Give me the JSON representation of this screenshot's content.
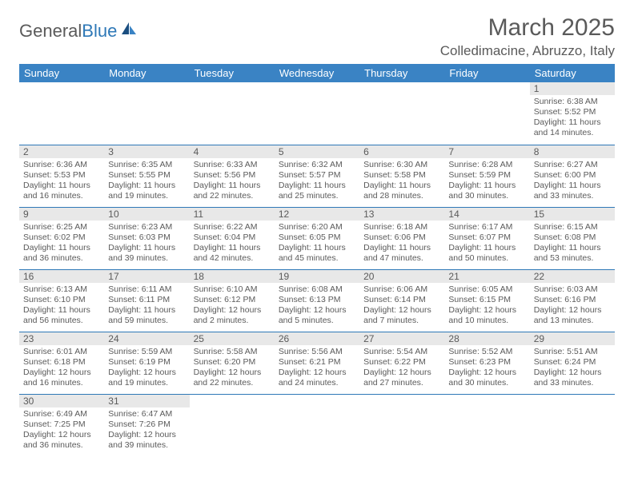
{
  "logo": {
    "text_part1": "General",
    "text_part2": "Blue"
  },
  "title": "March 2025",
  "location": "Colledimacine, Abruzzo, Italy",
  "colors": {
    "header_bg": "#3a83c4",
    "header_text": "#ffffff",
    "daynum_bg": "#e8e8e8",
    "text": "#5a5a5a",
    "border": "#2e78b7",
    "background": "#ffffff"
  },
  "weekdays": [
    "Sunday",
    "Monday",
    "Tuesday",
    "Wednesday",
    "Thursday",
    "Friday",
    "Saturday"
  ],
  "weeks": [
    [
      {
        "day": null
      },
      {
        "day": null
      },
      {
        "day": null
      },
      {
        "day": null
      },
      {
        "day": null
      },
      {
        "day": null
      },
      {
        "day": 1,
        "sunrise": "Sunrise: 6:38 AM",
        "sunset": "Sunset: 5:52 PM",
        "daylight": "Daylight: 11 hours and 14 minutes."
      }
    ],
    [
      {
        "day": 2,
        "sunrise": "Sunrise: 6:36 AM",
        "sunset": "Sunset: 5:53 PM",
        "daylight": "Daylight: 11 hours and 16 minutes."
      },
      {
        "day": 3,
        "sunrise": "Sunrise: 6:35 AM",
        "sunset": "Sunset: 5:55 PM",
        "daylight": "Daylight: 11 hours and 19 minutes."
      },
      {
        "day": 4,
        "sunrise": "Sunrise: 6:33 AM",
        "sunset": "Sunset: 5:56 PM",
        "daylight": "Daylight: 11 hours and 22 minutes."
      },
      {
        "day": 5,
        "sunrise": "Sunrise: 6:32 AM",
        "sunset": "Sunset: 5:57 PM",
        "daylight": "Daylight: 11 hours and 25 minutes."
      },
      {
        "day": 6,
        "sunrise": "Sunrise: 6:30 AM",
        "sunset": "Sunset: 5:58 PM",
        "daylight": "Daylight: 11 hours and 28 minutes."
      },
      {
        "day": 7,
        "sunrise": "Sunrise: 6:28 AM",
        "sunset": "Sunset: 5:59 PM",
        "daylight": "Daylight: 11 hours and 30 minutes."
      },
      {
        "day": 8,
        "sunrise": "Sunrise: 6:27 AM",
        "sunset": "Sunset: 6:00 PM",
        "daylight": "Daylight: 11 hours and 33 minutes."
      }
    ],
    [
      {
        "day": 9,
        "sunrise": "Sunrise: 6:25 AM",
        "sunset": "Sunset: 6:02 PM",
        "daylight": "Daylight: 11 hours and 36 minutes."
      },
      {
        "day": 10,
        "sunrise": "Sunrise: 6:23 AM",
        "sunset": "Sunset: 6:03 PM",
        "daylight": "Daylight: 11 hours and 39 minutes."
      },
      {
        "day": 11,
        "sunrise": "Sunrise: 6:22 AM",
        "sunset": "Sunset: 6:04 PM",
        "daylight": "Daylight: 11 hours and 42 minutes."
      },
      {
        "day": 12,
        "sunrise": "Sunrise: 6:20 AM",
        "sunset": "Sunset: 6:05 PM",
        "daylight": "Daylight: 11 hours and 45 minutes."
      },
      {
        "day": 13,
        "sunrise": "Sunrise: 6:18 AM",
        "sunset": "Sunset: 6:06 PM",
        "daylight": "Daylight: 11 hours and 47 minutes."
      },
      {
        "day": 14,
        "sunrise": "Sunrise: 6:17 AM",
        "sunset": "Sunset: 6:07 PM",
        "daylight": "Daylight: 11 hours and 50 minutes."
      },
      {
        "day": 15,
        "sunrise": "Sunrise: 6:15 AM",
        "sunset": "Sunset: 6:08 PM",
        "daylight": "Daylight: 11 hours and 53 minutes."
      }
    ],
    [
      {
        "day": 16,
        "sunrise": "Sunrise: 6:13 AM",
        "sunset": "Sunset: 6:10 PM",
        "daylight": "Daylight: 11 hours and 56 minutes."
      },
      {
        "day": 17,
        "sunrise": "Sunrise: 6:11 AM",
        "sunset": "Sunset: 6:11 PM",
        "daylight": "Daylight: 11 hours and 59 minutes."
      },
      {
        "day": 18,
        "sunrise": "Sunrise: 6:10 AM",
        "sunset": "Sunset: 6:12 PM",
        "daylight": "Daylight: 12 hours and 2 minutes."
      },
      {
        "day": 19,
        "sunrise": "Sunrise: 6:08 AM",
        "sunset": "Sunset: 6:13 PM",
        "daylight": "Daylight: 12 hours and 5 minutes."
      },
      {
        "day": 20,
        "sunrise": "Sunrise: 6:06 AM",
        "sunset": "Sunset: 6:14 PM",
        "daylight": "Daylight: 12 hours and 7 minutes."
      },
      {
        "day": 21,
        "sunrise": "Sunrise: 6:05 AM",
        "sunset": "Sunset: 6:15 PM",
        "daylight": "Daylight: 12 hours and 10 minutes."
      },
      {
        "day": 22,
        "sunrise": "Sunrise: 6:03 AM",
        "sunset": "Sunset: 6:16 PM",
        "daylight": "Daylight: 12 hours and 13 minutes."
      }
    ],
    [
      {
        "day": 23,
        "sunrise": "Sunrise: 6:01 AM",
        "sunset": "Sunset: 6:18 PM",
        "daylight": "Daylight: 12 hours and 16 minutes."
      },
      {
        "day": 24,
        "sunrise": "Sunrise: 5:59 AM",
        "sunset": "Sunset: 6:19 PM",
        "daylight": "Daylight: 12 hours and 19 minutes."
      },
      {
        "day": 25,
        "sunrise": "Sunrise: 5:58 AM",
        "sunset": "Sunset: 6:20 PM",
        "daylight": "Daylight: 12 hours and 22 minutes."
      },
      {
        "day": 26,
        "sunrise": "Sunrise: 5:56 AM",
        "sunset": "Sunset: 6:21 PM",
        "daylight": "Daylight: 12 hours and 24 minutes."
      },
      {
        "day": 27,
        "sunrise": "Sunrise: 5:54 AM",
        "sunset": "Sunset: 6:22 PM",
        "daylight": "Daylight: 12 hours and 27 minutes."
      },
      {
        "day": 28,
        "sunrise": "Sunrise: 5:52 AM",
        "sunset": "Sunset: 6:23 PM",
        "daylight": "Daylight: 12 hours and 30 minutes."
      },
      {
        "day": 29,
        "sunrise": "Sunrise: 5:51 AM",
        "sunset": "Sunset: 6:24 PM",
        "daylight": "Daylight: 12 hours and 33 minutes."
      }
    ],
    [
      {
        "day": 30,
        "sunrise": "Sunrise: 6:49 AM",
        "sunset": "Sunset: 7:25 PM",
        "daylight": "Daylight: 12 hours and 36 minutes."
      },
      {
        "day": 31,
        "sunrise": "Sunrise: 6:47 AM",
        "sunset": "Sunset: 7:26 PM",
        "daylight": "Daylight: 12 hours and 39 minutes."
      },
      {
        "day": null
      },
      {
        "day": null
      },
      {
        "day": null
      },
      {
        "day": null
      },
      {
        "day": null
      }
    ]
  ]
}
